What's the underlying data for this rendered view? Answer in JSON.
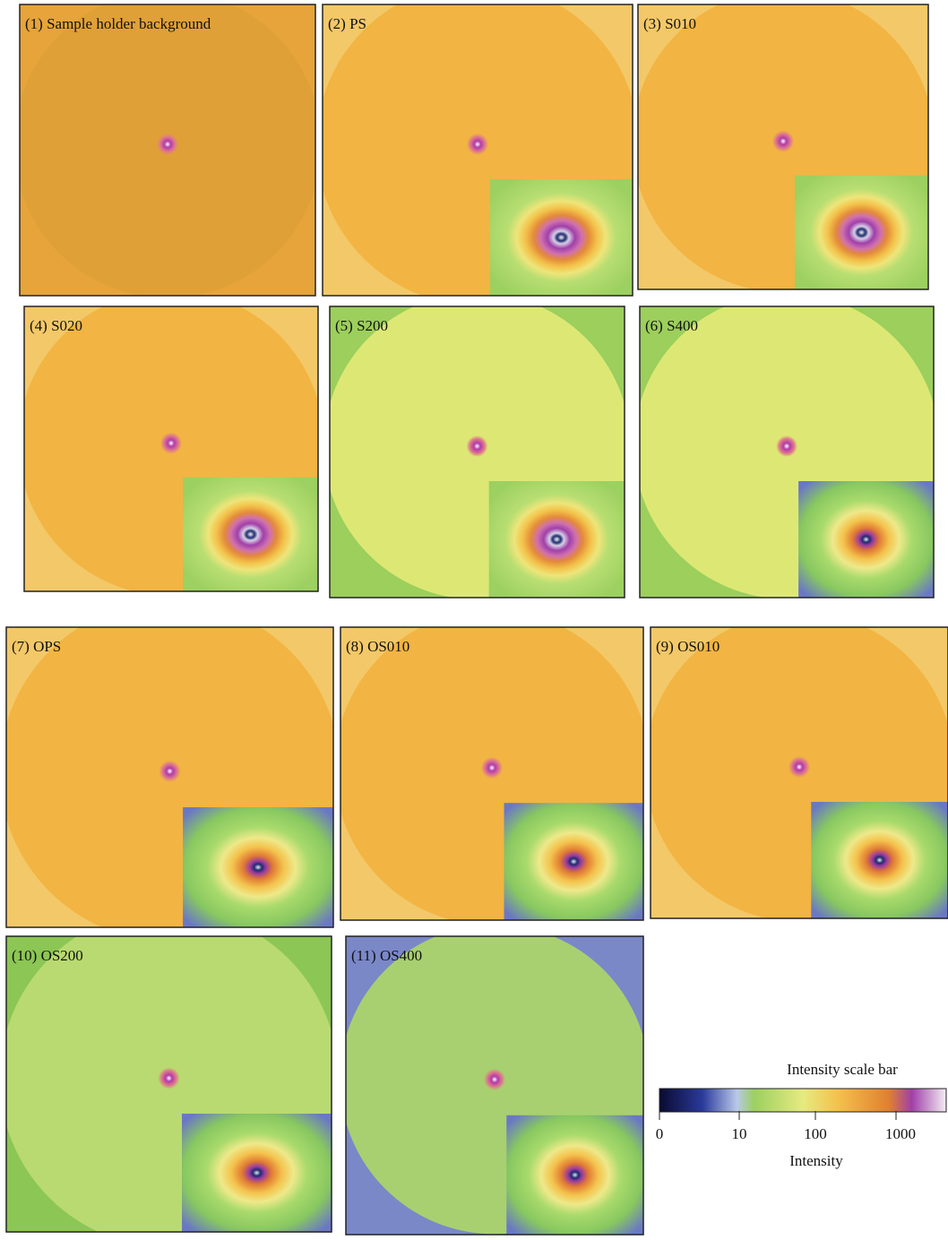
{
  "panels": [
    "(1) Sample holder background",
    "(2) PS",
    "(3) S010",
    "(4) S020",
    "(5) S200",
    "(6) S400",
    "(7) OPS",
    "(8) OS010",
    "(9) OS010",
    "(10) OS200",
    "(11) OS400"
  ],
  "scale_bar": {
    "title": "Intensity scale bar",
    "tick_labels": [
      "0",
      "10",
      "100",
      "1000"
    ],
    "axis_label": "Intensity"
  }
}
